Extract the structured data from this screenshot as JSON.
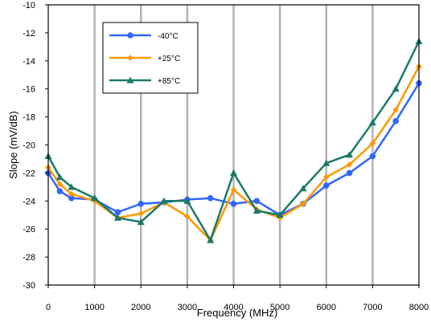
{
  "chart_data": {
    "type": "line",
    "xlabel": "Frequency (MHz)",
    "ylabel": "Slope (mV/dB)",
    "xlim": [
      0,
      8000
    ],
    "ylim": [
      -30,
      -10
    ],
    "xticks": [
      0,
      1000,
      2000,
      3000,
      4000,
      5000,
      6000,
      7000,
      8000
    ],
    "yticks": [
      -10,
      -12,
      -14,
      -16,
      -18,
      -20,
      -22,
      -24,
      -26,
      -28,
      -30
    ],
    "grid": "vertical",
    "legend_position": "top-left",
    "x": [
      0,
      250,
      500,
      1000,
      1500,
      2000,
      2500,
      3000,
      3500,
      4000,
      4500,
      5000,
      5500,
      6000,
      6500,
      7000,
      7500,
      8000
    ],
    "series": [
      {
        "name": "-40°C",
        "color": "#3366ff",
        "marker": "circle",
        "values": [
          -22.0,
          -23.3,
          -23.8,
          -23.9,
          -24.8,
          -24.2,
          -24.1,
          -23.9,
          -23.8,
          -24.2,
          -24.0,
          -25.0,
          -24.2,
          -22.9,
          -22.0,
          -20.8,
          -18.3,
          -15.6
        ]
      },
      {
        "name": "+25°C",
        "color": "#ff9900",
        "marker": "diamond",
        "values": [
          -21.6,
          -22.8,
          -23.5,
          -24.0,
          -25.2,
          -24.9,
          -24.1,
          -25.1,
          -26.8,
          -23.2,
          -24.6,
          -25.2,
          -24.2,
          -22.3,
          -21.4,
          -19.9,
          -17.5,
          -14.4
        ]
      },
      {
        "name": "+85°C",
        "color": "#1a7a6a",
        "marker": "triangle",
        "values": [
          -20.8,
          -22.3,
          -23.0,
          -23.8,
          -25.2,
          -25.5,
          -24.0,
          -24.0,
          -26.8,
          -22.0,
          -24.7,
          -25.0,
          -23.1,
          -21.3,
          -20.7,
          -18.4,
          -16.0,
          -12.6
        ]
      }
    ]
  }
}
